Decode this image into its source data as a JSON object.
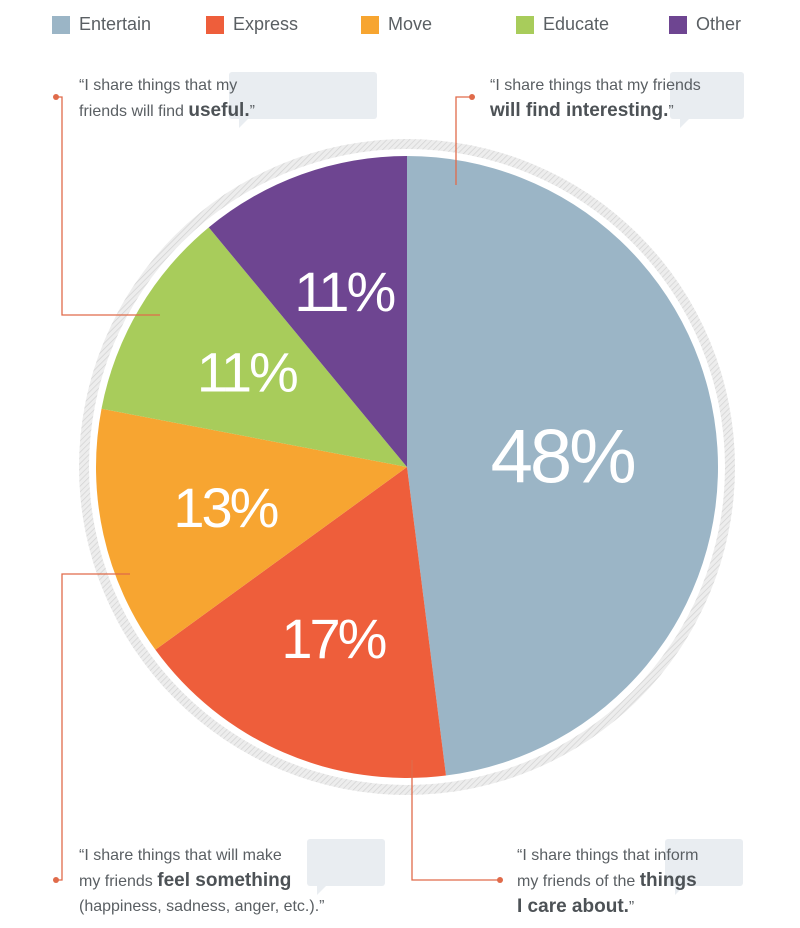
{
  "chart_data": {
    "type": "pie",
    "slices": [
      {
        "name": "Entertain",
        "value": 48,
        "label": "48%",
        "color": "#9bb5c6"
      },
      {
        "name": "Express",
        "value": 17,
        "label": "17%",
        "color": "#ee5e3b"
      },
      {
        "name": "Move",
        "value": 13,
        "label": "13%",
        "color": "#f7a531"
      },
      {
        "name": "Educate",
        "value": 11,
        "label": "11%",
        "color": "#a8cc5b"
      },
      {
        "name": "Other",
        "value": 11,
        "label": "11%",
        "color": "#6e4591"
      }
    ],
    "legend_position": "top"
  },
  "annotations": {
    "useful": {
      "l1": "“I share things that my",
      "l2a": "friends will find ",
      "l2b": "useful.",
      "l2c": "”"
    },
    "interesting": {
      "l1": "“I share things that my friends",
      "l2b": "will find interesting.",
      "l2c": "”"
    },
    "feel": {
      "l1": "“I share things that will make",
      "l2a": "my friends ",
      "l2b": "feel something",
      "l3": "(happiness, sadness, anger, etc.).”"
    },
    "care": {
      "l1": "“I share things that inform",
      "l2a": "my friends of the ",
      "l2b": "things",
      "l3b": "I care about.",
      "l3c": "”"
    }
  },
  "colors": {
    "accent_line": "#e06b4a",
    "bubble": "#e9edf1"
  }
}
